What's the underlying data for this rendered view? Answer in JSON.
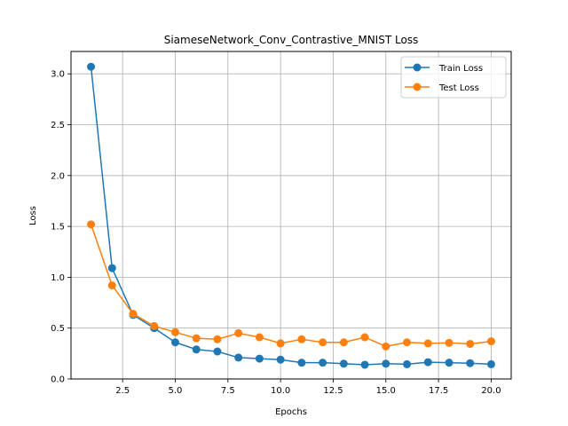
{
  "chart_data": {
    "type": "line",
    "title": "SiameseNetwork_Conv_Contrastive_MNIST Loss",
    "xlabel": "Epochs",
    "ylabel": "Loss",
    "xlim": [
      0.05,
      20.95
    ],
    "ylim": [
      0,
      3.22
    ],
    "xticks": [
      2.5,
      5.0,
      7.5,
      10.0,
      12.5,
      15.0,
      17.5,
      20.0
    ],
    "xtick_labels": [
      "2.5",
      "5.0",
      "7.5",
      "10.0",
      "12.5",
      "15.0",
      "17.5",
      "20.0"
    ],
    "yticks": [
      0.0,
      0.5,
      1.0,
      1.5,
      2.0,
      2.5,
      3.0
    ],
    "ytick_labels": [
      "0.0",
      "0.5",
      "1.0",
      "1.5",
      "2.0",
      "2.5",
      "3.0"
    ],
    "grid": true,
    "legend_position": "top-right",
    "x": [
      1,
      2,
      3,
      4,
      5,
      6,
      7,
      8,
      9,
      10,
      11,
      12,
      13,
      14,
      15,
      16,
      17,
      18,
      19,
      20
    ],
    "series": [
      {
        "name": "Train Loss",
        "color": "#1f77b4",
        "values": [
          3.07,
          1.09,
          0.63,
          0.5,
          0.36,
          0.29,
          0.27,
          0.21,
          0.2,
          0.19,
          0.16,
          0.16,
          0.15,
          0.14,
          0.15,
          0.145,
          0.165,
          0.16,
          0.155,
          0.145
        ]
      },
      {
        "name": "Test Loss",
        "color": "#ff7f0e",
        "values": [
          1.52,
          0.92,
          0.64,
          0.52,
          0.46,
          0.4,
          0.39,
          0.45,
          0.41,
          0.35,
          0.39,
          0.36,
          0.36,
          0.41,
          0.32,
          0.36,
          0.35,
          0.355,
          0.345,
          0.37
        ]
      }
    ]
  }
}
